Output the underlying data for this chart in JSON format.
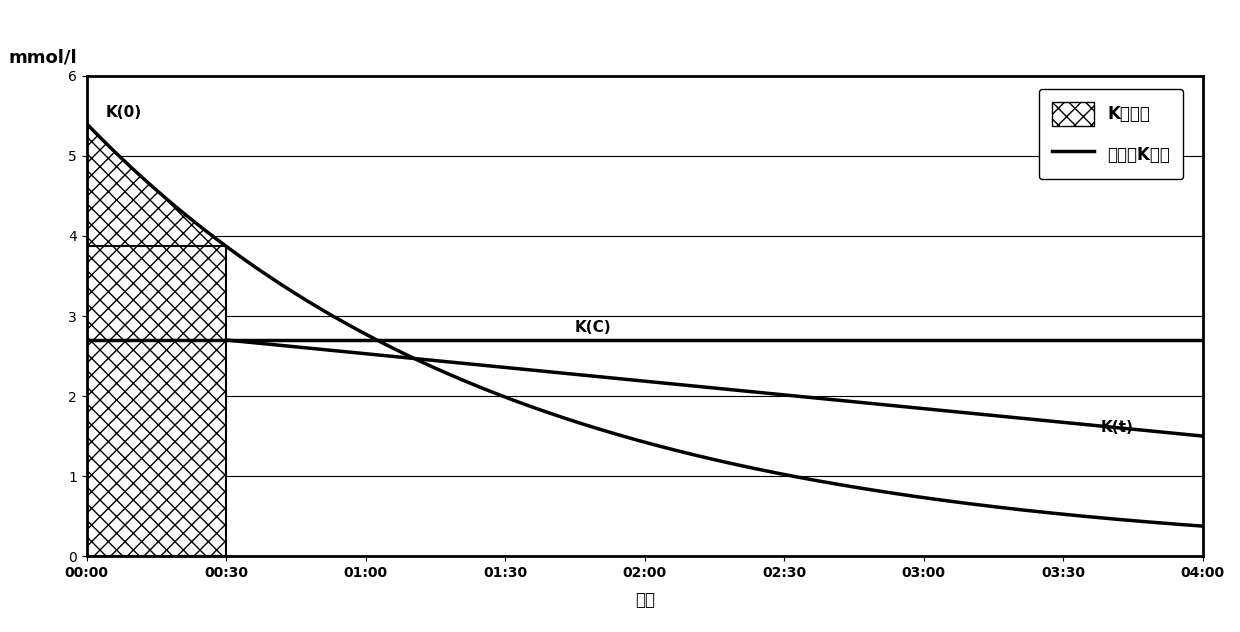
{
  "ylabel": "mmol/l",
  "xlabel": "小时",
  "ylim": [
    0,
    6
  ],
  "xlim": [
    0,
    240
  ],
  "yticks": [
    0,
    1,
    2,
    3,
    4,
    5,
    6
  ],
  "xticks": [
    0,
    30,
    60,
    90,
    120,
    150,
    180,
    210,
    240
  ],
  "xtick_labels": [
    "00:00",
    "00:30",
    "01:00",
    "01:30",
    "02:00",
    "02:30",
    "03:00",
    "03:30",
    "04:00"
  ],
  "K0": 5.4,
  "Kc": 2.7,
  "Kt": 1.5,
  "decay_tau": 90,
  "hatch_end_minutes": 30,
  "legend_hatch_label": "K弥散量",
  "legend_line_label": "透析液K浓度",
  "annotation_K0": "K(0)",
  "annotation_Kc": "K(C)",
  "annotation_Kt": "K(t)",
  "line_color": "#000000",
  "hatch_color": "#000000",
  "hatch_facecolor": "#ffffff",
  "bg_color": "#ffffff",
  "grid_color": "#000000",
  "figsize": [
    12.4,
    6.32
  ],
  "dpi": 100
}
